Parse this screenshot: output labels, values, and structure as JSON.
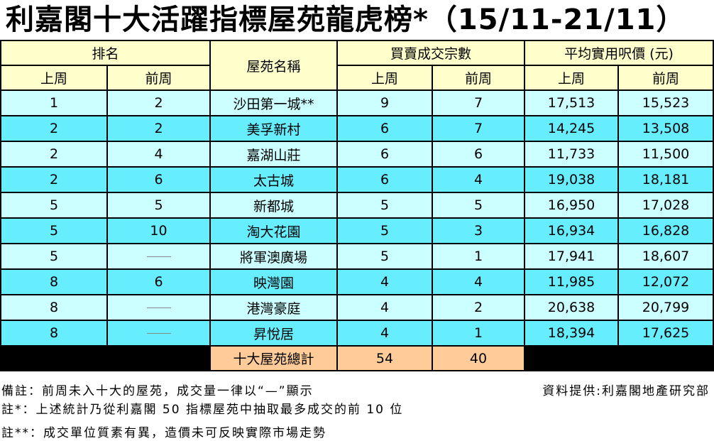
{
  "title": "利嘉閣十大活躍指標屋苑龍虎榜*（15/11-21/11）",
  "headers": {
    "rank": "排名",
    "estate": "屋苑名稱",
    "transactions": "買賣成交宗數",
    "price": "平均實用呎價 (元)",
    "last_week": "上周",
    "prev_week": "前周"
  },
  "rows": [
    {
      "rank_last": "1",
      "rank_prev": "2",
      "name": "沙田第一城**",
      "tx_last": "9",
      "tx_prev": "7",
      "price_last": "17,513",
      "price_prev": "15,523"
    },
    {
      "rank_last": "2",
      "rank_prev": "2",
      "name": "美孚新村",
      "tx_last": "6",
      "tx_prev": "7",
      "price_last": "14,245",
      "price_prev": "13,508"
    },
    {
      "rank_last": "2",
      "rank_prev": "4",
      "name": "嘉湖山莊",
      "tx_last": "6",
      "tx_prev": "6",
      "price_last": "11,733",
      "price_prev": "11,500"
    },
    {
      "rank_last": "2",
      "rank_prev": "6",
      "name": "太古城",
      "tx_last": "6",
      "tx_prev": "4",
      "price_last": "19,038",
      "price_prev": "18,181"
    },
    {
      "rank_last": "5",
      "rank_prev": "5",
      "name": "新都城",
      "tx_last": "5",
      "tx_prev": "5",
      "price_last": "16,950",
      "price_prev": "17,028"
    },
    {
      "rank_last": "5",
      "rank_prev": "10",
      "name": "淘大花園",
      "tx_last": "5",
      "tx_prev": "3",
      "price_last": "16,934",
      "price_prev": "16,828"
    },
    {
      "rank_last": "5",
      "rank_prev": "—",
      "name": "將軍澳廣場",
      "tx_last": "5",
      "tx_prev": "1",
      "price_last": "17,941",
      "price_prev": "18,607"
    },
    {
      "rank_last": "8",
      "rank_prev": "6",
      "name": "映灣園",
      "tx_last": "4",
      "tx_prev": "4",
      "price_last": "11,985",
      "price_prev": "12,072"
    },
    {
      "rank_last": "8",
      "rank_prev": "—",
      "name": "港灣豪庭",
      "tx_last": "4",
      "tx_prev": "2",
      "price_last": "20,638",
      "price_prev": "20,799"
    },
    {
      "rank_last": "8",
      "rank_prev": "—",
      "name": "昇悅居",
      "tx_last": "4",
      "tx_prev": "1",
      "price_last": "18,394",
      "price_prev": "17,625"
    }
  ],
  "total": {
    "label": "十大屋苑總計",
    "tx_last": "54",
    "tx_prev": "40"
  },
  "notes": {
    "remark": "備註：前周未入十大的屋苑，成交量一律以“—”顯示",
    "source": "資料提供:利嘉閣地產研究部",
    "note1": "註*：上述統計乃從利嘉閣 50 指標屋苑中抽取最多成交的前 10 位",
    "note2": "註**：成交單位質素有異，造價未可反映實際市場走勢"
  },
  "colors": {
    "header": "#ffffcc",
    "row_light": "#ccffff",
    "row_dark": "#66eeff",
    "total": "#ffcc99"
  }
}
